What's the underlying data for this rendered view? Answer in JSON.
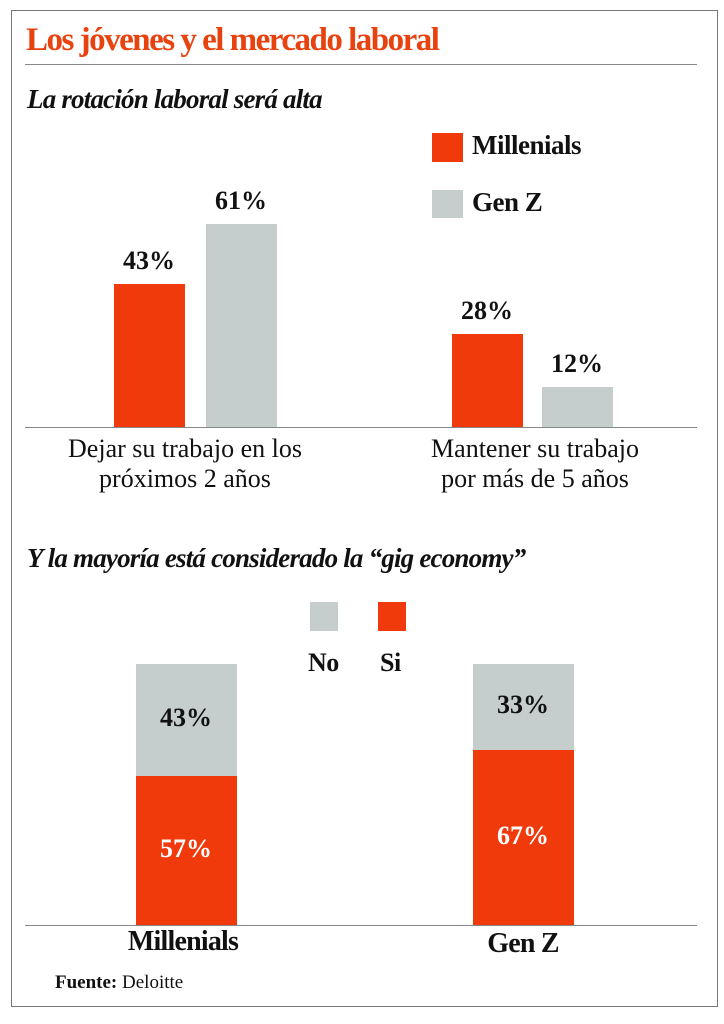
{
  "title": "Los jóvenes y  el mercado laboral",
  "colors": {
    "millenials": "#f03a0c",
    "genz": "#c5cdcd",
    "title": "#e8420f",
    "si": "#f03a0c",
    "no": "#c5cdcd"
  },
  "chart_data": [
    {
      "type": "bar",
      "title": "La rotación laboral será alta",
      "categories": [
        "Dejar su trabajo en los próximos 2 años",
        "Mantener su trabajo por más de 5 años"
      ],
      "category_lines": [
        [
          "Dejar su trabajo en los",
          "próximos 2 años"
        ],
        [
          "Mantener su trabajo",
          "por más de 5 años"
        ]
      ],
      "series": [
        {
          "name": "Millenials",
          "values": [
            43,
            28
          ],
          "labels": [
            "43%",
            "28%"
          ]
        },
        {
          "name": "Gen Z",
          "values": [
            61,
            12
          ],
          "labels": [
            "61%",
            "12%"
          ]
        }
      ],
      "ylim": [
        0,
        65
      ],
      "legend": "top-right"
    },
    {
      "type": "bar",
      "stacked": true,
      "title": "Y la mayoría está considerado la “gig economy”",
      "categories": [
        "Millenials",
        "Gen Z"
      ],
      "series": [
        {
          "name": "Si",
          "values": [
            57,
            67
          ],
          "labels": [
            "57%",
            "67%"
          ]
        },
        {
          "name": "No",
          "values": [
            43,
            33
          ],
          "labels": [
            "43%",
            "33%"
          ]
        }
      ],
      "ylim": [
        0,
        100
      ],
      "legend": "top-center"
    }
  ],
  "source": {
    "label": "Fuente:",
    "value": "Deloitte"
  }
}
